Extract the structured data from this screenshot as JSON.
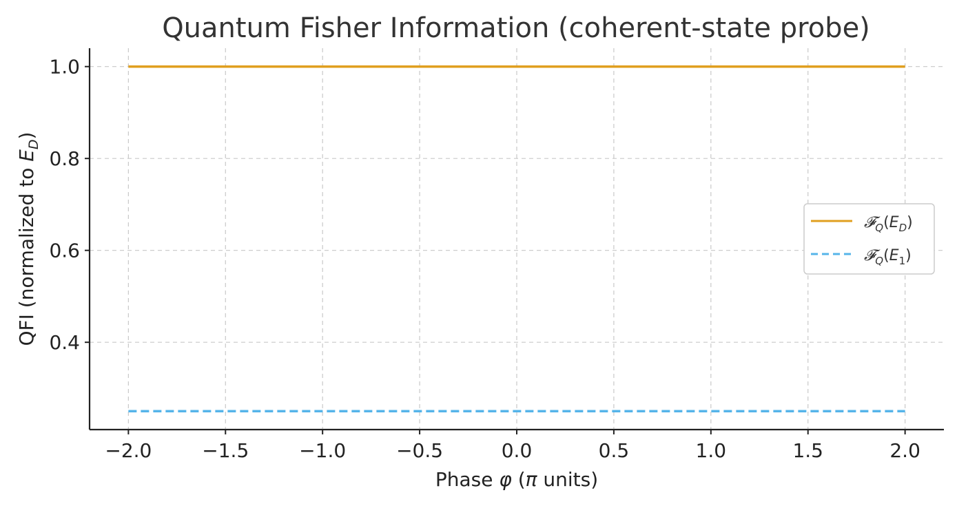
{
  "chart_data": {
    "type": "line",
    "title": "Quantum Fisher Information (coherent-state probe)",
    "xlabel": "Phase φ (π units)",
    "ylabel": "QFI (normalized to E_D)",
    "xlim": [
      -2.2,
      2.2
    ],
    "ylim": [
      0.21,
      1.04
    ],
    "xticks": [
      -2.0,
      -1.5,
      -1.0,
      -0.5,
      0.0,
      0.5,
      1.0,
      1.5,
      2.0
    ],
    "xtick_labels": [
      "−2.0",
      "−1.5",
      "−1.0",
      "−0.5",
      "0.0",
      "0.5",
      "1.0",
      "1.5",
      "2.0"
    ],
    "yticks": [
      0.4,
      0.6,
      0.8,
      1.0
    ],
    "ytick_labels": [
      "0.4",
      "0.6",
      "0.8",
      "1.0"
    ],
    "grid": true,
    "legend_position": "right",
    "series": [
      {
        "name": "𝓕_Q(E_D)",
        "x": [
          -2.0,
          2.0
        ],
        "y": [
          1.0,
          1.0
        ],
        "color": "#E09F1F",
        "style": "solid"
      },
      {
        "name": "𝓕_Q(E_1)",
        "x": [
          -2.0,
          2.0
        ],
        "y": [
          0.25,
          0.25
        ],
        "color": "#56B4E9",
        "style": "dashed"
      }
    ]
  }
}
